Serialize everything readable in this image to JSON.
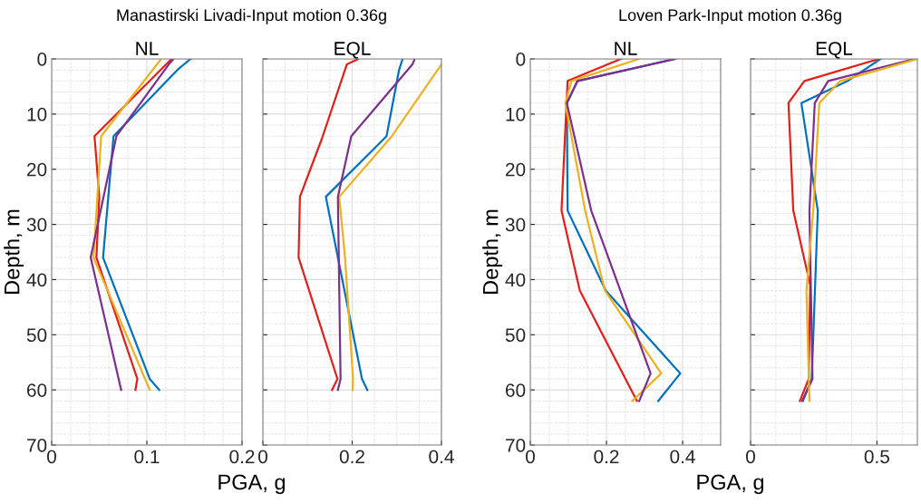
{
  "chart_data": [
    {
      "type": "line",
      "title": "NL",
      "ylabel": "Depth, m",
      "xlabel": "PGA, g",
      "annotations": [
        "Manastirski Livadi-Input motion 0.36g"
      ],
      "xlim": [
        0,
        0.2
      ],
      "xticks": [
        0,
        0.1,
        0.2
      ],
      "ylim": [
        70,
        0
      ],
      "yticks": [
        0,
        10,
        20,
        30,
        40,
        50,
        60,
        70
      ],
      "grid": true,
      "series": [
        {
          "color": "#0072bd",
          "x": [
            0.146,
            0.132,
            0.065,
            0.054,
            0.103,
            0.113
          ],
          "values": [
            0,
            2,
            14,
            36,
            58,
            60
          ]
        },
        {
          "color": "#e0201b",
          "x": [
            0.126,
            0.045,
            0.05,
            0.047,
            0.09,
            0.088
          ],
          "values": [
            0,
            14,
            25,
            36,
            58,
            60
          ]
        },
        {
          "color": "#edb120",
          "x": [
            0.115,
            0.052,
            0.044,
            0.103
          ],
          "values": [
            0,
            14,
            36,
            60
          ]
        },
        {
          "color": "#7e2f8e",
          "x": [
            0.128,
            0.123,
            0.068,
            0.041,
            0.073
          ],
          "values": [
            0,
            1,
            14,
            36,
            60
          ]
        }
      ]
    },
    {
      "type": "line",
      "title": "EQL",
      "xlim": [
        0,
        0.4
      ],
      "xticks": [
        0,
        0.2,
        0.4
      ],
      "ylim": [
        70,
        0
      ],
      "yticks": [
        0,
        10,
        20,
        30,
        40,
        50,
        60,
        70
      ],
      "tick_labels": "x",
      "grid": true,
      "series": [
        {
          "color": "#0072bd",
          "x": [
            0.313,
            0.305,
            0.277,
            0.141,
            0.222,
            0.234
          ],
          "values": [
            0,
            2,
            14,
            25,
            58,
            60
          ]
        },
        {
          "color": "#e0201b",
          "x": [
            0.214,
            0.188,
            0.132,
            0.083,
            0.08,
            0.167,
            0.155
          ],
          "values": [
            0,
            1,
            14.5,
            25,
            36,
            58,
            60
          ]
        },
        {
          "color": "#edb120",
          "x": [
            0.4,
            0.289,
            0.171,
            0.184,
            0.202,
            0.201
          ],
          "values": [
            1,
            14,
            25,
            36,
            58,
            60
          ]
        },
        {
          "color": "#7e2f8e",
          "x": [
            0.34,
            0.335,
            0.198,
            0.168,
            0.174,
            0.168
          ],
          "values": [
            0,
            1,
            14,
            25,
            58,
            60
          ]
        }
      ]
    },
    {
      "type": "line",
      "title": "NL",
      "ylabel": "Depth, m",
      "xlabel": "PGA, g",
      "annotations": [
        "Loven Park-Input motion 0.36g"
      ],
      "xlim": [
        0,
        0.5
      ],
      "xticks": [
        0,
        0.2,
        0.4
      ],
      "ylim": [
        70,
        0
      ],
      "yticks": [
        0,
        10,
        20,
        30,
        40,
        50,
        60,
        70
      ],
      "grid": true,
      "series": [
        {
          "color": "#0072bd",
          "x": [
            0.38,
            0.124,
            0.096,
            0.098,
            0.198,
            0.394,
            0.336
          ],
          "values": [
            0,
            4,
            8,
            27.5,
            42,
            57,
            62
          ]
        },
        {
          "color": "#e0201b",
          "x": [
            0.238,
            0.098,
            0.082,
            0.13,
            0.28
          ],
          "values": [
            0,
            4,
            27.5,
            42,
            62
          ]
        },
        {
          "color": "#edb120",
          "x": [
            0.286,
            0.108,
            0.092,
            0.144,
            0.196,
            0.344,
            0.268
          ],
          "values": [
            0,
            4,
            8,
            27.5,
            42,
            57,
            62
          ]
        },
        {
          "color": "#7e2f8e",
          "x": [
            0.382,
            0.124,
            0.096,
            0.16,
            0.316,
            0.286
          ],
          "values": [
            0,
            4,
            8,
            27.5,
            57,
            62
          ]
        }
      ]
    },
    {
      "type": "line",
      "title": "EQL",
      "xlim": [
        0,
        0.66
      ],
      "xticks": [
        0,
        0.5
      ],
      "ylim": [
        70,
        0
      ],
      "yticks": [
        0,
        10,
        20,
        30,
        40,
        50,
        60,
        70
      ],
      "tick_labels": "x",
      "grid": true,
      "series": [
        {
          "color": "#0072bd",
          "x": [
            0.514,
            0.384,
            0.201,
            0.266,
            0.242,
            0.207
          ],
          "values": [
            0,
            4,
            8,
            27.5,
            58,
            62
          ]
        },
        {
          "color": "#e0201b",
          "x": [
            0.508,
            0.213,
            0.15,
            0.169,
            0.236,
            0.23,
            0.195
          ],
          "values": [
            0,
            4,
            8,
            27.5,
            41,
            58,
            62
          ]
        },
        {
          "color": "#7e2f8e",
          "x": [
            0.65,
            0.307,
            0.254,
            0.233,
            0.245,
            0.204
          ],
          "values": [
            0,
            4,
            8,
            27.5,
            58,
            62
          ]
        },
        {
          "color": "#edb120",
          "x": [
            0.66,
            0.355,
            0.272,
            0.248,
            0.221,
            0.233
          ],
          "values": [
            0,
            4,
            8,
            27.5,
            42,
            62
          ]
        }
      ]
    }
  ]
}
